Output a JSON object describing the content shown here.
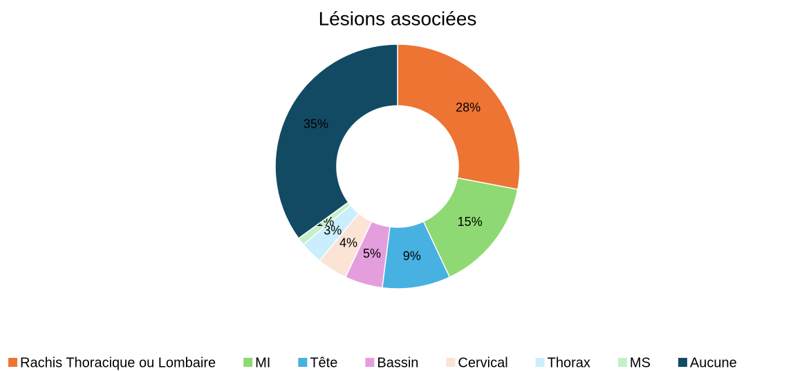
{
  "chart_data": {
    "type": "donut",
    "title": "Lésions associées",
    "categories": [
      "Rachis Thoracique ou Lombaire",
      "MI",
      "Tête",
      "Bassin",
      "Cervical",
      "Thorax",
      "MS",
      "Aucune"
    ],
    "values": [
      28,
      15,
      9,
      5,
      4,
      3,
      1,
      35
    ],
    "value_labels": [
      "28%",
      "15%",
      "9%",
      "5%",
      "4%",
      "3%",
      "1%",
      "35%"
    ],
    "colors": [
      "#ED7433",
      "#8ED973",
      "#47B1E2",
      "#E59EDD",
      "#FBE3D6",
      "#CAEEFB",
      "#C2F0C8",
      "#124A63"
    ],
    "legend": "bottom"
  }
}
